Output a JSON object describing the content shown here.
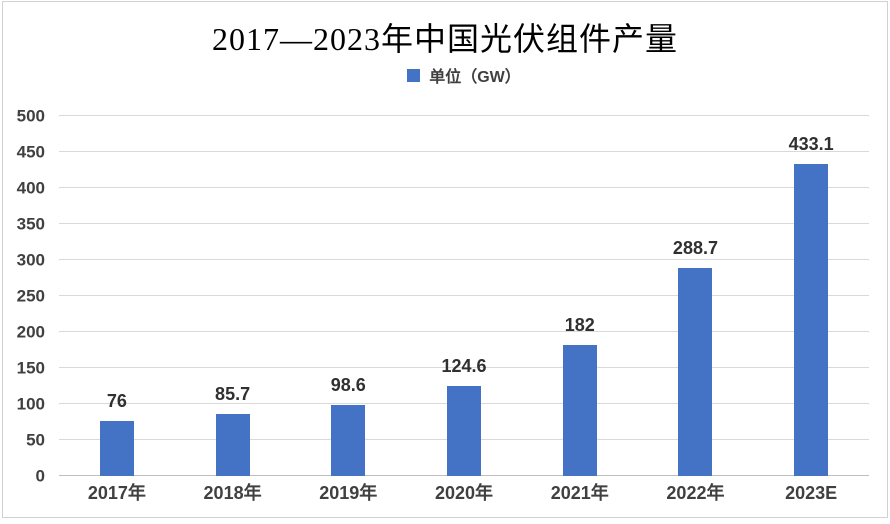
{
  "page": {
    "background": "#ffffff",
    "frame_border_color": "#d2d2d2"
  },
  "title": {
    "text": "2017—2023年中国光伏组件产量",
    "color": "#000000"
  },
  "legend": {
    "label": "单位（GW）",
    "swatch_color": "#4472c4",
    "text_color": "#404040",
    "position": "top-center"
  },
  "chart_data": {
    "type": "bar",
    "title": "2017—2023年中国光伏组件产量",
    "categories": [
      "2017年",
      "2018年",
      "2019年",
      "2020年",
      "2021年",
      "2022年",
      "2023E"
    ],
    "values": [
      76,
      85.7,
      98.6,
      124.6,
      182,
      288.7,
      433.1
    ],
    "series": [
      {
        "name": "单位（GW）",
        "values": [
          76,
          85.7,
          98.6,
          124.6,
          182,
          288.7,
          433.1
        ]
      }
    ],
    "xlabel": "",
    "ylabel": "",
    "ylim": [
      0,
      500
    ],
    "yticks": [
      0,
      50,
      100,
      150,
      200,
      250,
      300,
      350,
      400,
      450,
      500
    ],
    "grid": true,
    "data_labels": true,
    "legend_position": "top",
    "bar_color": "#4472c4",
    "gridline_color": "#d9d9d9",
    "axis_line_color": "#bfbfbf",
    "tick_label_color": "#404040",
    "data_label_color": "#303030"
  }
}
